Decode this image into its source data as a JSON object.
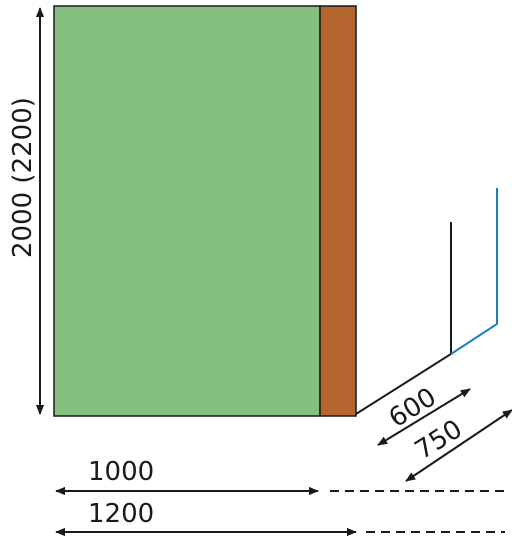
{
  "labels": {
    "height": "2000 (2200)",
    "depth_short": "600",
    "depth_long": "750",
    "width_short": "1000",
    "width_long": "1200"
  },
  "colors": {
    "panel_green": "#84c080",
    "side_brown": "#b5652f",
    "outline": "#1a1a1a",
    "accent_blue": "#1a7ec4",
    "background": "#ffffff"
  }
}
